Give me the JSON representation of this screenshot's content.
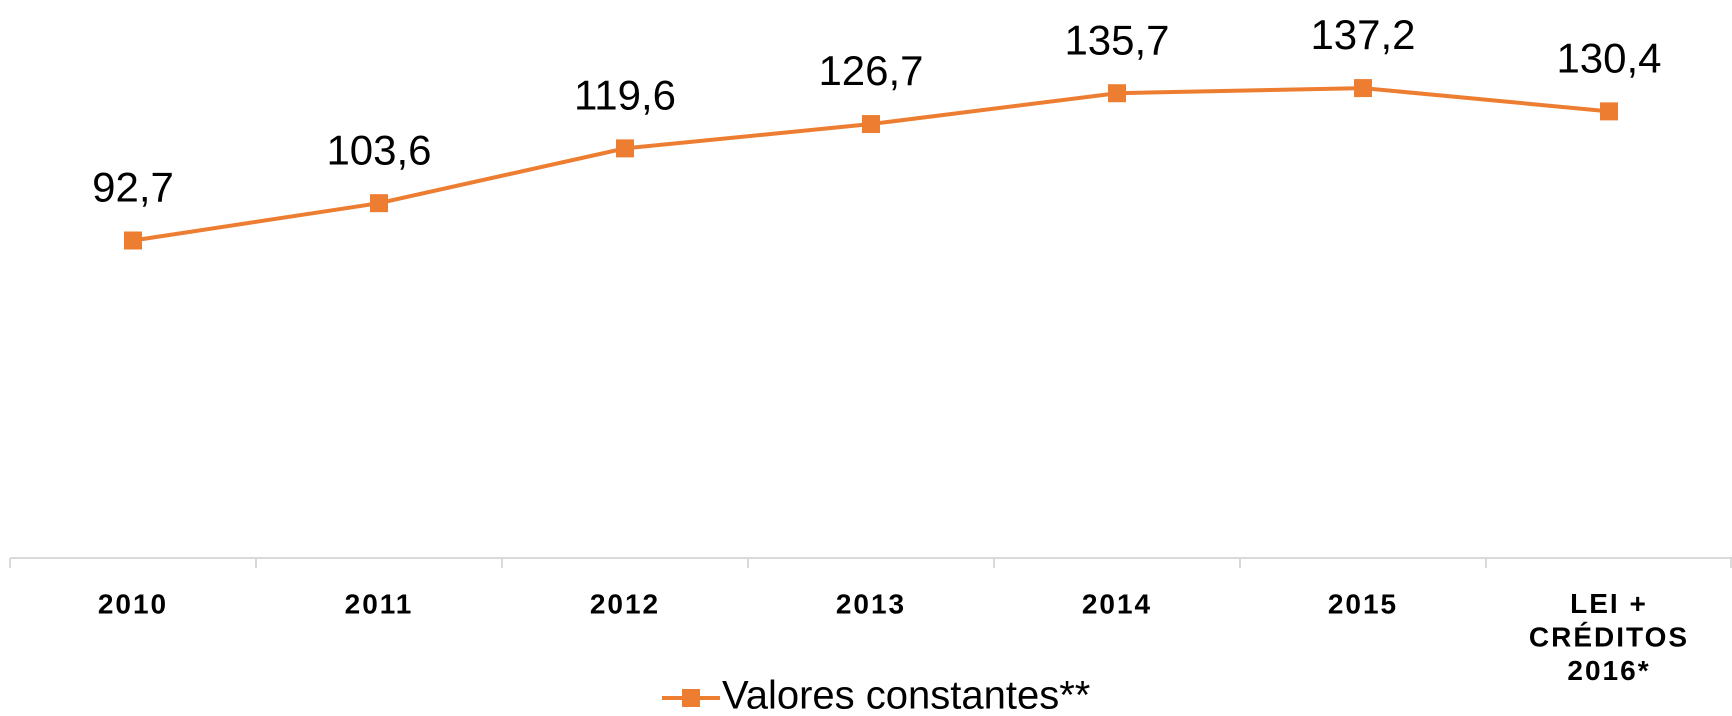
{
  "chart_data": {
    "type": "line",
    "categories": [
      "2010",
      "2011",
      "2012",
      "2013",
      "2014",
      "2015",
      "LEI +\nCRÉDITOS\n2016*"
    ],
    "series": [
      {
        "name": "Valores constantes**",
        "color": "#ED7D31",
        "values": [
          92.7,
          103.6,
          119.6,
          126.7,
          135.7,
          137.2,
          130.4
        ],
        "value_labels": [
          "92,7",
          "103,6",
          "119,6",
          "126,7",
          "135,7",
          "137,2",
          "130,4"
        ]
      }
    ],
    "ylim": [
      0,
      160
    ],
    "legend": "bottom"
  }
}
